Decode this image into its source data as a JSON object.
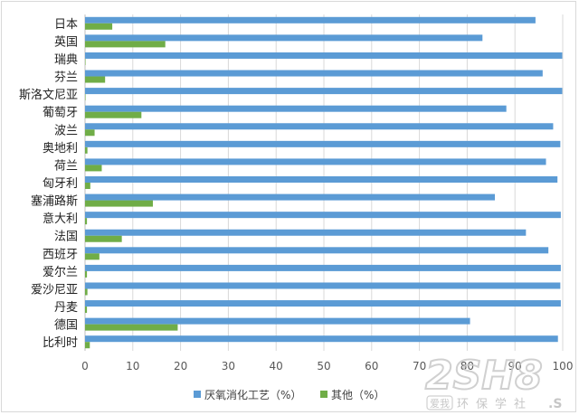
{
  "colors": {
    "series1": "#5b9bd5",
    "series2": "#70ad47",
    "grid": "#d9d9d9",
    "watermark": "#cfcfcf"
  },
  "chart_data": {
    "type": "bar",
    "orientation": "horizontal",
    "categories": [
      "日本",
      "英国",
      "瑞典",
      "芬兰",
      "斯洛文尼亚",
      "葡萄牙",
      "波兰",
      "奥地利",
      "荷兰",
      "匈牙利",
      "塞浦路斯",
      "意大利",
      "法国",
      "西班牙",
      "爱尔兰",
      "爱沙尼亚",
      "丹麦",
      "德国",
      "比利时"
    ],
    "series": [
      {
        "name": "厌氧消化工艺（%）",
        "values": [
          94.3,
          83.2,
          99.9,
          95.8,
          99.9,
          88.2,
          98.0,
          99.5,
          96.5,
          98.9,
          85.8,
          99.6,
          92.3,
          97.0,
          99.6,
          99.5,
          99.6,
          80.6,
          99.0
        ]
      },
      {
        "name": "其他（%）",
        "values": [
          5.7,
          16.8,
          0.1,
          4.2,
          0.1,
          11.8,
          2.0,
          0.5,
          3.5,
          1.1,
          14.2,
          0.4,
          7.7,
          3.0,
          0.4,
          0.5,
          0.4,
          19.4,
          1.0
        ]
      }
    ],
    "xlim": [
      0,
      100
    ],
    "xticks": [
      0,
      10,
      20,
      30,
      40,
      50,
      60,
      70,
      80,
      90,
      100
    ],
    "grid": true,
    "legend_position": "bottom"
  },
  "watermark": {
    "logo": "2SH8",
    "badge": "爱我",
    "text": "环保学社",
    "suffix": ".S"
  }
}
